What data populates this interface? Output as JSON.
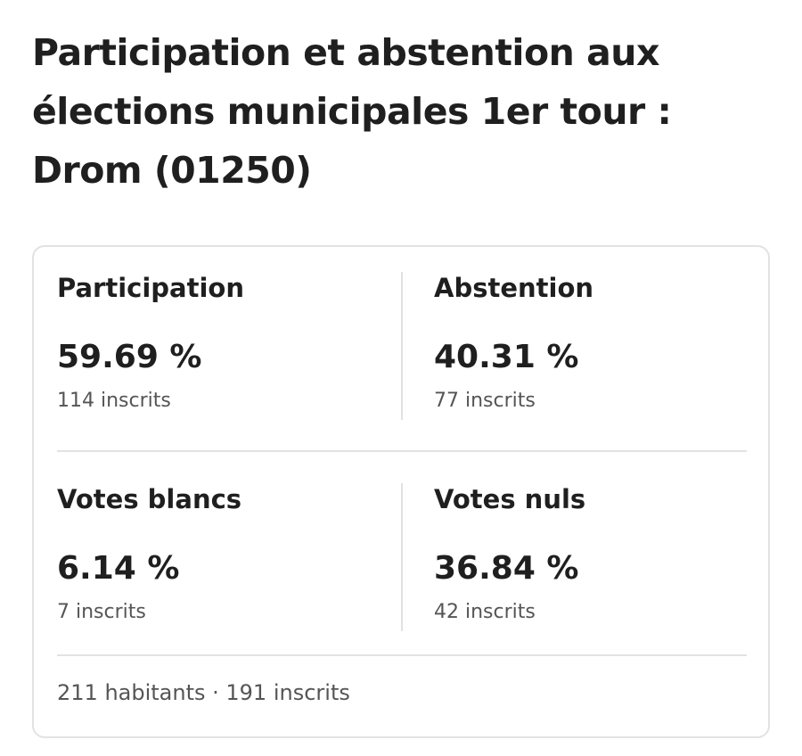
{
  "title": "Participation et abstention aux élections municipales 1er tour : Drom (01250)",
  "stats": [
    {
      "label": "Participation",
      "value": "59.69 %",
      "sub": "114 inscrits"
    },
    {
      "label": "Abstention",
      "value": "40.31 %",
      "sub": "77 inscrits"
    },
    {
      "label": "Votes blancs",
      "value": "6.14 %",
      "sub": "7 inscrits"
    },
    {
      "label": "Votes nuls",
      "value": "36.84 %",
      "sub": "42 inscrits"
    }
  ],
  "footer": "211 habitants · 191 inscrits"
}
